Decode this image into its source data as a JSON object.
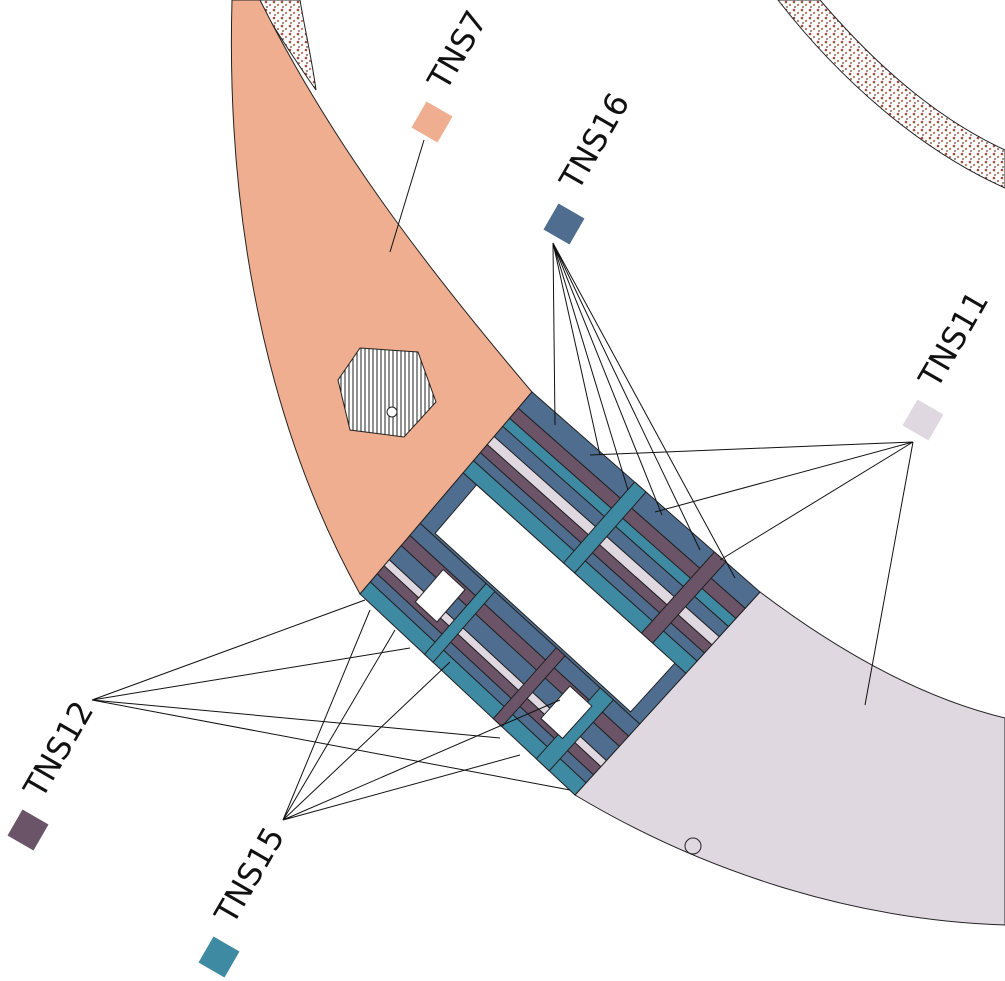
{
  "labels": [
    {
      "text": "TNS7",
      "color": "#efae8f"
    },
    {
      "text": "TNS16",
      "color": "#4e6d8f"
    },
    {
      "text": "TNS11",
      "color": "#e0d8e0"
    },
    {
      "text": "TNS12",
      "color": "#6b5468"
    },
    {
      "text": "TNS15",
      "color": "#3f8aa3"
    }
  ]
}
